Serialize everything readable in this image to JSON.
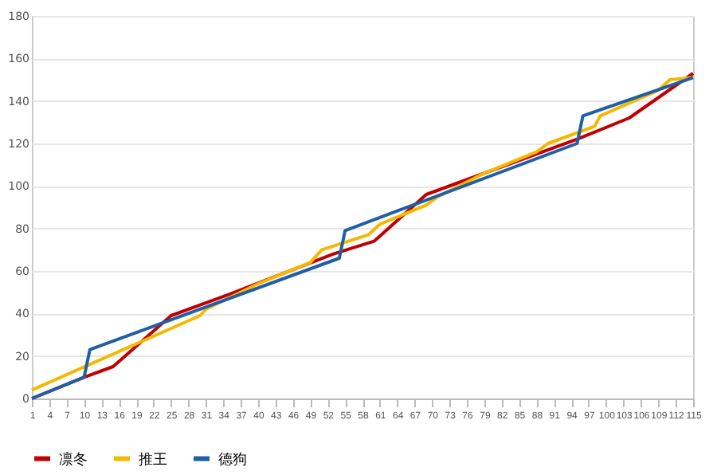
{
  "chart_data": {
    "type": "line",
    "series": [
      {
        "name": "凛冬",
        "color": "#c00000",
        "x": [
          1,
          10,
          15,
          25,
          35,
          53,
          60,
          69,
          95,
          104,
          115
        ],
        "values": [
          0,
          10,
          15,
          39,
          49,
          68,
          74,
          96,
          122,
          132,
          153
        ]
      },
      {
        "name": "推王",
        "color": "#f5b800",
        "x": [
          1,
          30,
          31,
          40,
          49,
          51,
          59,
          61,
          69,
          71,
          79,
          88,
          90,
          98,
          99,
          109,
          111,
          115
        ],
        "values": [
          4,
          39,
          42,
          54,
          64,
          70,
          77,
          82,
          91,
          95,
          106,
          116,
          120,
          128,
          133,
          145,
          150,
          151
        ]
      },
      {
        "name": "德狗",
        "color": "#1f5fa8",
        "x": [
          1,
          10,
          11,
          54,
          55,
          95,
          96,
          115
        ],
        "values": [
          0,
          10,
          23,
          66,
          79,
          120,
          133,
          151
        ]
      }
    ],
    "xlim": [
      1,
      115
    ],
    "xticks": [
      1,
      4,
      7,
      10,
      13,
      16,
      19,
      22,
      25,
      28,
      31,
      34,
      37,
      40,
      43,
      46,
      49,
      52,
      55,
      58,
      61,
      64,
      67,
      70,
      73,
      76,
      79,
      82,
      85,
      88,
      91,
      94,
      97,
      100,
      103,
      106,
      109,
      112,
      115
    ],
    "ylim": [
      0,
      180
    ],
    "yticks": [
      0,
      20,
      40,
      60,
      80,
      100,
      120,
      140,
      160,
      180
    ],
    "grid": "y",
    "legend": "bottom",
    "line_style": "solid",
    "marker": "none"
  }
}
